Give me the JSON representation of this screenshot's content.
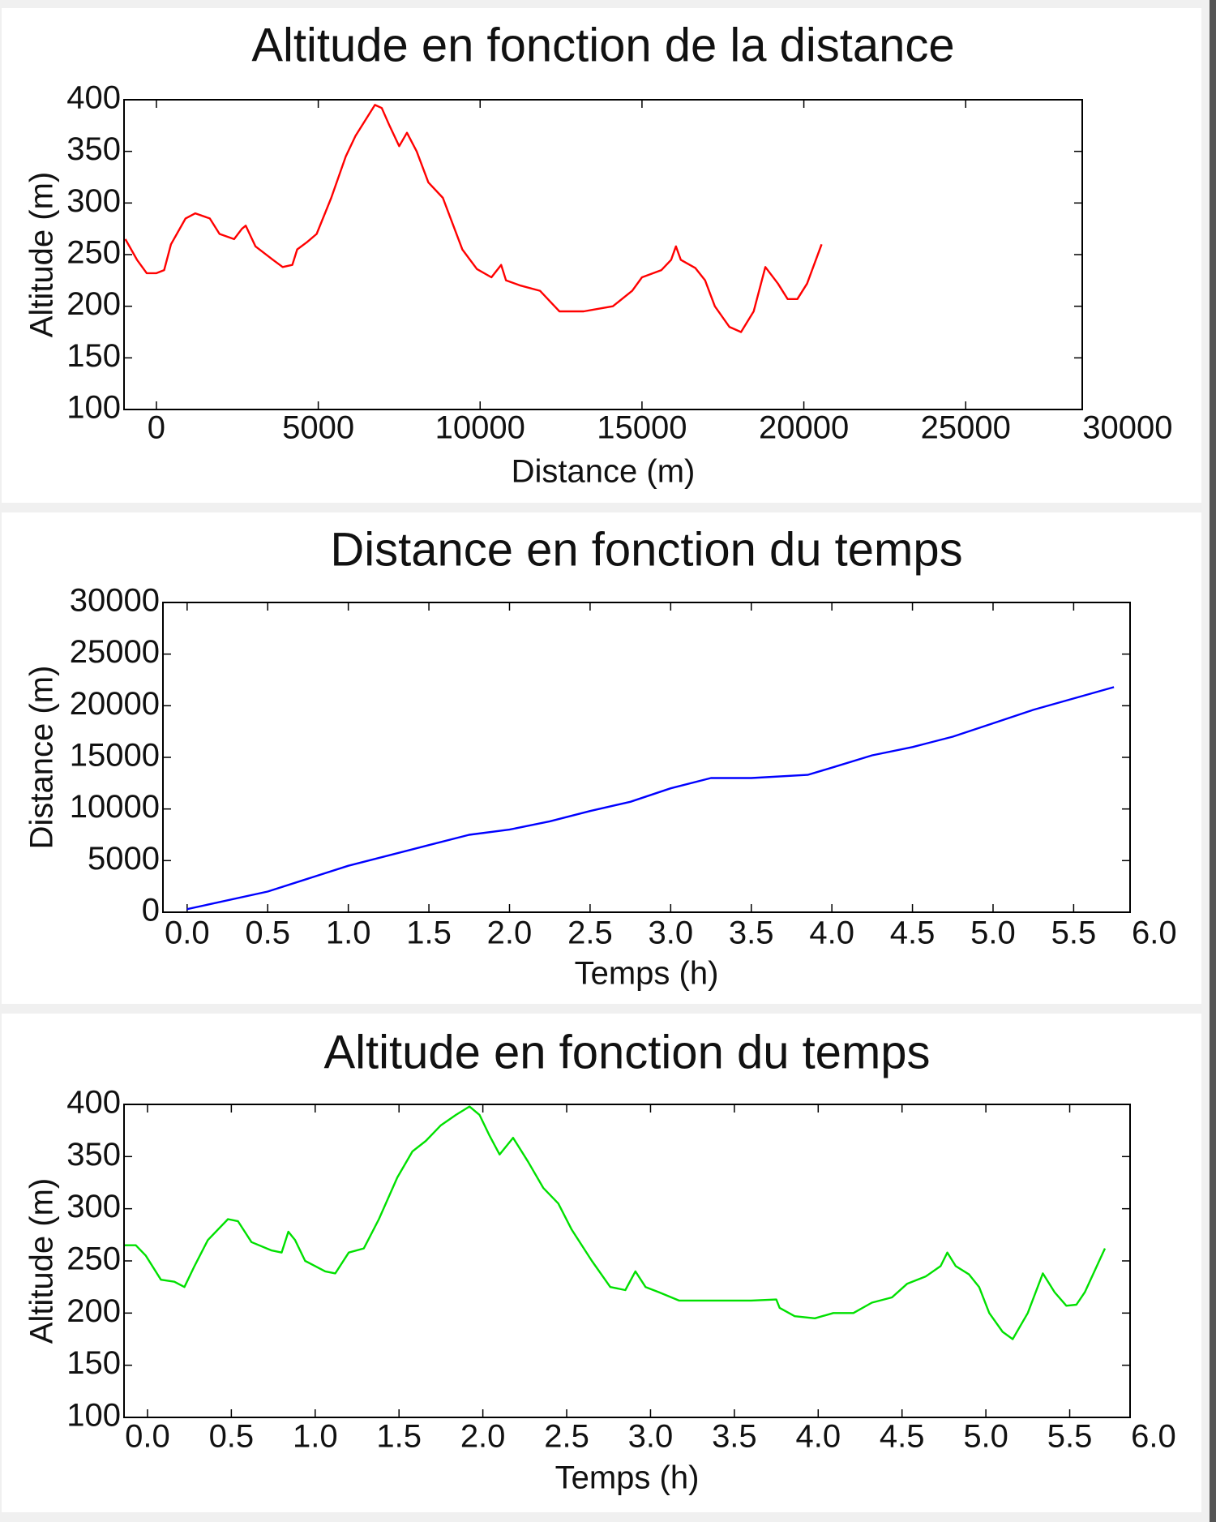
{
  "chart_data": [
    {
      "type": "line",
      "title": "Altitude en fonction de la distance",
      "xlabel": "Distance (m)",
      "ylabel": "Altitude (m)",
      "color": "#ff0000",
      "x": [
        -960,
        -600,
        -300,
        0,
        240,
        450,
        900,
        1200,
        1650,
        1950,
        2400,
        2640,
        2760,
        3060,
        3600,
        3900,
        4200,
        4350,
        4650,
        4950,
        5400,
        5850,
        6150,
        6450,
        6750,
        6960,
        7200,
        7500,
        7740,
        8040,
        8400,
        8850,
        9150,
        9450,
        9900,
        10350,
        10650,
        10800,
        11250,
        11850,
        12150,
        12450,
        13200,
        14100,
        14700,
        15000,
        15600,
        15900,
        16050,
        16200,
        16650,
        16950,
        17250,
        17700,
        18060,
        18450,
        18810,
        19200,
        19500,
        19800,
        20100,
        20550
      ],
      "values": [
        265,
        245,
        232,
        232,
        235,
        260,
        285,
        290,
        285,
        270,
        265,
        275,
        278,
        258,
        245,
        238,
        240,
        255,
        262,
        270,
        305,
        345,
        365,
        380,
        395,
        392,
        375,
        355,
        368,
        350,
        320,
        305,
        280,
        255,
        236,
        228,
        240,
        225,
        220,
        215,
        205,
        195,
        195,
        200,
        215,
        228,
        235,
        245,
        258,
        245,
        237,
        225,
        200,
        180,
        175,
        195,
        238,
        222,
        207,
        207,
        222,
        260
      ],
      "xlim": [
        -1000,
        28600
      ],
      "ylim": [
        100,
        400
      ],
      "xticks": [
        0,
        5000,
        10000,
        15000,
        20000,
        25000,
        30000
      ],
      "yticks": [
        100,
        150,
        200,
        250,
        300,
        350,
        400
      ],
      "grid": false
    },
    {
      "type": "line",
      "title": "Distance en fonction du temps",
      "xlabel": "Temps (h)",
      "ylabel": "Distance (m)",
      "color": "#0000ff",
      "x": [
        0,
        0.5,
        1,
        1.5,
        1.75,
        2,
        2.25,
        2.5,
        2.75,
        3,
        3.25,
        3.5,
        3.85,
        4,
        4.25,
        4.5,
        4.75,
        5,
        5.25,
        5.5,
        5.75
      ],
      "values": [
        300,
        2000,
        4500,
        6500,
        7500,
        8000,
        8800,
        9800,
        10700,
        12000,
        13000,
        13000,
        13300,
        14000,
        15200,
        16000,
        17000,
        18300,
        19600,
        20700,
        21800
      ],
      "xlim": [
        -0.15,
        5.85
      ],
      "ylim": [
        0,
        30000
      ],
      "xticks": [
        {
          "value": 0,
          "label": "0.0"
        },
        0.5,
        {
          "value": 1,
          "label": "1.0"
        },
        1.5,
        {
          "value": 2,
          "label": "2.0"
        },
        2.5,
        {
          "value": 3,
          "label": "3.0"
        },
        3.5,
        {
          "value": 4,
          "label": "4.0"
        },
        4.5,
        {
          "value": 5,
          "label": "5.0"
        },
        5.5,
        {
          "value": 6,
          "label": "6.0"
        }
      ],
      "yticks": [
        0,
        5000,
        10000,
        15000,
        20000,
        25000,
        30000
      ],
      "grid": false
    },
    {
      "type": "line",
      "title": "Altitude en fonction du temps",
      "xlabel": "Temps (h)",
      "ylabel": "Altitude (m)",
      "color": "#00e000",
      "x": [
        -0.14,
        -0.07,
        -0.01,
        0.08,
        0.16,
        0.22,
        0.28,
        0.36,
        0.48,
        0.54,
        0.62,
        0.74,
        0.8,
        0.84,
        0.88,
        0.94,
        1.06,
        1.12,
        1.2,
        1.29,
        1.38,
        1.49,
        1.58,
        1.66,
        1.75,
        1.84,
        1.92,
        1.98,
        2.04,
        2.1,
        2.18,
        2.27,
        2.36,
        2.45,
        2.53,
        2.65,
        2.76,
        2.85,
        2.91,
        2.97,
        3.05,
        3.17,
        3.4,
        3.6,
        3.75,
        3.77,
        3.86,
        3.98,
        4.09,
        4.21,
        4.32,
        4.44,
        4.53,
        4.64,
        4.73,
        4.77,
        4.82,
        4.9,
        4.96,
        5.02,
        5.1,
        5.16,
        5.25,
        5.34,
        5.41,
        5.48,
        5.54,
        5.59,
        5.71
      ],
      "values": [
        265,
        265,
        255,
        232,
        230,
        225,
        245,
        270,
        290,
        288,
        268,
        260,
        258,
        278,
        270,
        250,
        240,
        238,
        258,
        262,
        290,
        330,
        355,
        365,
        380,
        390,
        398,
        390,
        370,
        352,
        368,
        345,
        320,
        305,
        280,
        250,
        225,
        222,
        240,
        225,
        220,
        212,
        212,
        212,
        213,
        205,
        197,
        195,
        200,
        200,
        210,
        215,
        228,
        235,
        245,
        258,
        245,
        237,
        225,
        200,
        182,
        175,
        200,
        238,
        220,
        207,
        208,
        220,
        262
      ],
      "xlim": [
        -0.14,
        5.86
      ],
      "ylim": [
        100,
        400
      ],
      "xticks": [
        {
          "value": 0,
          "label": "0.0"
        },
        0.5,
        {
          "value": 1,
          "label": "1.0"
        },
        1.5,
        {
          "value": 2,
          "label": "2.0"
        },
        2.5,
        {
          "value": 3,
          "label": "3.0"
        },
        3.5,
        {
          "value": 4,
          "label": "4.0"
        },
        4.5,
        {
          "value": 5,
          "label": "5.0"
        },
        5.5,
        {
          "value": 6,
          "label": "6.0"
        }
      ],
      "yticks": [
        100,
        150,
        200,
        250,
        300,
        350,
        400
      ],
      "grid": false
    }
  ]
}
